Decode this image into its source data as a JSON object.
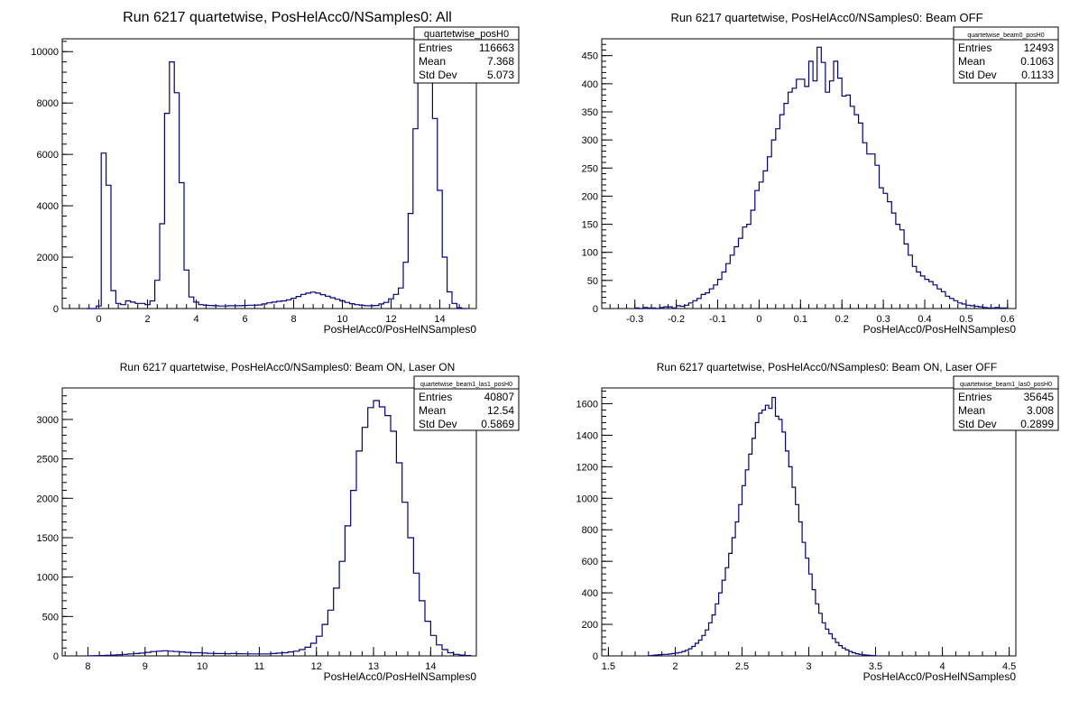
{
  "canvas": {
    "background": "#ffffff",
    "line_color": "#000080"
  },
  "chart_data": [
    {
      "type": "histogram",
      "title": "Run 6217 quartetwise, PosHelAcc0/NSamples0: All",
      "xlabel": "PosHelAcc0/PosHelNSamples0",
      "ylabel": "",
      "xlim": [
        -1.5,
        15.5
      ],
      "ylim": [
        0,
        10500
      ],
      "xticks": [
        0,
        2,
        4,
        6,
        8,
        10,
        12,
        14
      ],
      "yticks": [
        0,
        2000,
        4000,
        6000,
        8000,
        10000
      ],
      "stats": {
        "name": "quartetwise_posH0",
        "Entries": "116663",
        "Mean": "7.368",
        "Std Dev": "5.073"
      },
      "bins": {
        "x0": -0.5,
        "width": 0.2,
        "values": [
          0,
          0,
          100,
          6050,
          4800,
          700,
          200,
          150,
          300,
          250,
          200,
          200,
          150,
          300,
          1100,
          3300,
          7600,
          9600,
          8400,
          4900,
          1500,
          450,
          250,
          150,
          130,
          120,
          110,
          100,
          100,
          110,
          110,
          110,
          120,
          130,
          130,
          140,
          180,
          220,
          250,
          280,
          300,
          340,
          400,
          470,
          550,
          600,
          640,
          600,
          540,
          480,
          420,
          360,
          300,
          240,
          190,
          150,
          130,
          110,
          110,
          120,
          180,
          240,
          380,
          550,
          800,
          1800,
          3700,
          7000,
          9300,
          9950,
          9600,
          7400,
          4600,
          2000,
          650,
          200,
          30,
          0
        ]
      }
    },
    {
      "type": "histogram",
      "title": "Run 6217 quartetwise, PosHelAcc0/NSamples0: Beam OFF",
      "xlabel": "PosHelAcc0/PosHelNSamples0",
      "ylabel": "",
      "xlim": [
        -0.38,
        0.62
      ],
      "ylim": [
        0,
        480
      ],
      "xticks": [
        -0.3,
        -0.2,
        -0.1,
        0,
        0.1,
        0.2,
        0.3,
        0.4,
        0.5,
        0.6
      ],
      "yticks": [
        0,
        50,
        100,
        150,
        200,
        250,
        300,
        350,
        400,
        450
      ],
      "stats": {
        "name": "quartetwise_beam0_posH0",
        "Entries": "12493",
        "Mean": "0.1063",
        "Std Dev": "0.1133"
      },
      "bins": {
        "x0": -0.3,
        "width": 0.01,
        "values": [
          1,
          0,
          2,
          1,
          1,
          0,
          2,
          3,
          3,
          1,
          5,
          4,
          6,
          10,
          14,
          18,
          25,
          28,
          35,
          42,
          52,
          65,
          80,
          95,
          110,
          125,
          145,
          150,
          175,
          210,
          225,
          245,
          270,
          300,
          320,
          345,
          365,
          385,
          392,
          408,
          408,
          395,
          440,
          405,
          465,
          438,
          385,
          405,
          440,
          410,
          378,
          380,
          360,
          345,
          330,
          295,
          275,
          275,
          255,
          215,
          205,
          190,
          170,
          150,
          140,
          115,
          95,
          75,
          65,
          58,
          52,
          48,
          42,
          35,
          30,
          22,
          18,
          14,
          10,
          8,
          6,
          5,
          4,
          3,
          2,
          1,
          1,
          2,
          1,
          1
        ]
      }
    },
    {
      "type": "histogram",
      "title": "Run 6217 quartetwise, PosHelAcc0/NSamples0: Beam ON, Laser ON",
      "xlabel": "PosHelAcc0/PosHelNSamples0",
      "ylabel": "",
      "xlim": [
        7.55,
        14.8
      ],
      "ylim": [
        0,
        3400
      ],
      "xticks": [
        8,
        9,
        10,
        11,
        12,
        13,
        14
      ],
      "yticks": [
        0,
        500,
        1000,
        1500,
        2000,
        2500,
        3000
      ],
      "stats": {
        "name": "quartetwise_beam1_las1_posH0",
        "Entries": "40807",
        "Mean": "12.54",
        "Std Dev": "0.5869"
      },
      "bins": {
        "x0": 8.0,
        "width": 0.1,
        "values": [
          2,
          3,
          5,
          8,
          10,
          15,
          20,
          25,
          30,
          35,
          45,
          55,
          60,
          65,
          60,
          55,
          50,
          45,
          40,
          40,
          35,
          32,
          30,
          30,
          28,
          30,
          28,
          26,
          25,
          25,
          25,
          25,
          30,
          35,
          40,
          50,
          60,
          80,
          110,
          160,
          250,
          400,
          580,
          860,
          1200,
          1650,
          2100,
          2600,
          2900,
          3150,
          3240,
          3160,
          3050,
          2850,
          2450,
          1950,
          1500,
          1050,
          700,
          440,
          260,
          140,
          80,
          40,
          20,
          10,
          5
        ]
      }
    },
    {
      "type": "histogram",
      "title": "Run 6217 quartetwise, PosHelAcc0/NSamples0: Beam ON, Laser OFF",
      "xlabel": "PosHelAcc0/PosHelNSamples0",
      "ylabel": "",
      "xlim": [
        1.45,
        4.55
      ],
      "ylim": [
        0,
        1700
      ],
      "xticks": [
        1.5,
        2,
        2.5,
        3,
        3.5,
        4,
        4.5
      ],
      "yticks": [
        0,
        200,
        400,
        600,
        800,
        1000,
        1200,
        1400,
        1600
      ],
      "stats": {
        "name": "quartetwise_beam1_las0_posH0",
        "Entries": "35645",
        "Mean": "3.008",
        "Std Dev": "0.2899"
      },
      "bins": {
        "x0": 1.8,
        "width": 0.025,
        "values": [
          2,
          4,
          6,
          8,
          10,
          10,
          12,
          15,
          18,
          22,
          28,
          35,
          45,
          60,
          80,
          100,
          130,
          165,
          210,
          260,
          330,
          400,
          480,
          560,
          650,
          750,
          850,
          960,
          1080,
          1180,
          1280,
          1380,
          1480,
          1540,
          1560,
          1590,
          1570,
          1640,
          1520,
          1500,
          1420,
          1300,
          1200,
          1070,
          960,
          850,
          720,
          620,
          520,
          420,
          330,
          270,
          210,
          170,
          140,
          110,
          85,
          65,
          50,
          38,
          28,
          20,
          14,
          10,
          7,
          5,
          3,
          2
        ]
      }
    }
  ]
}
